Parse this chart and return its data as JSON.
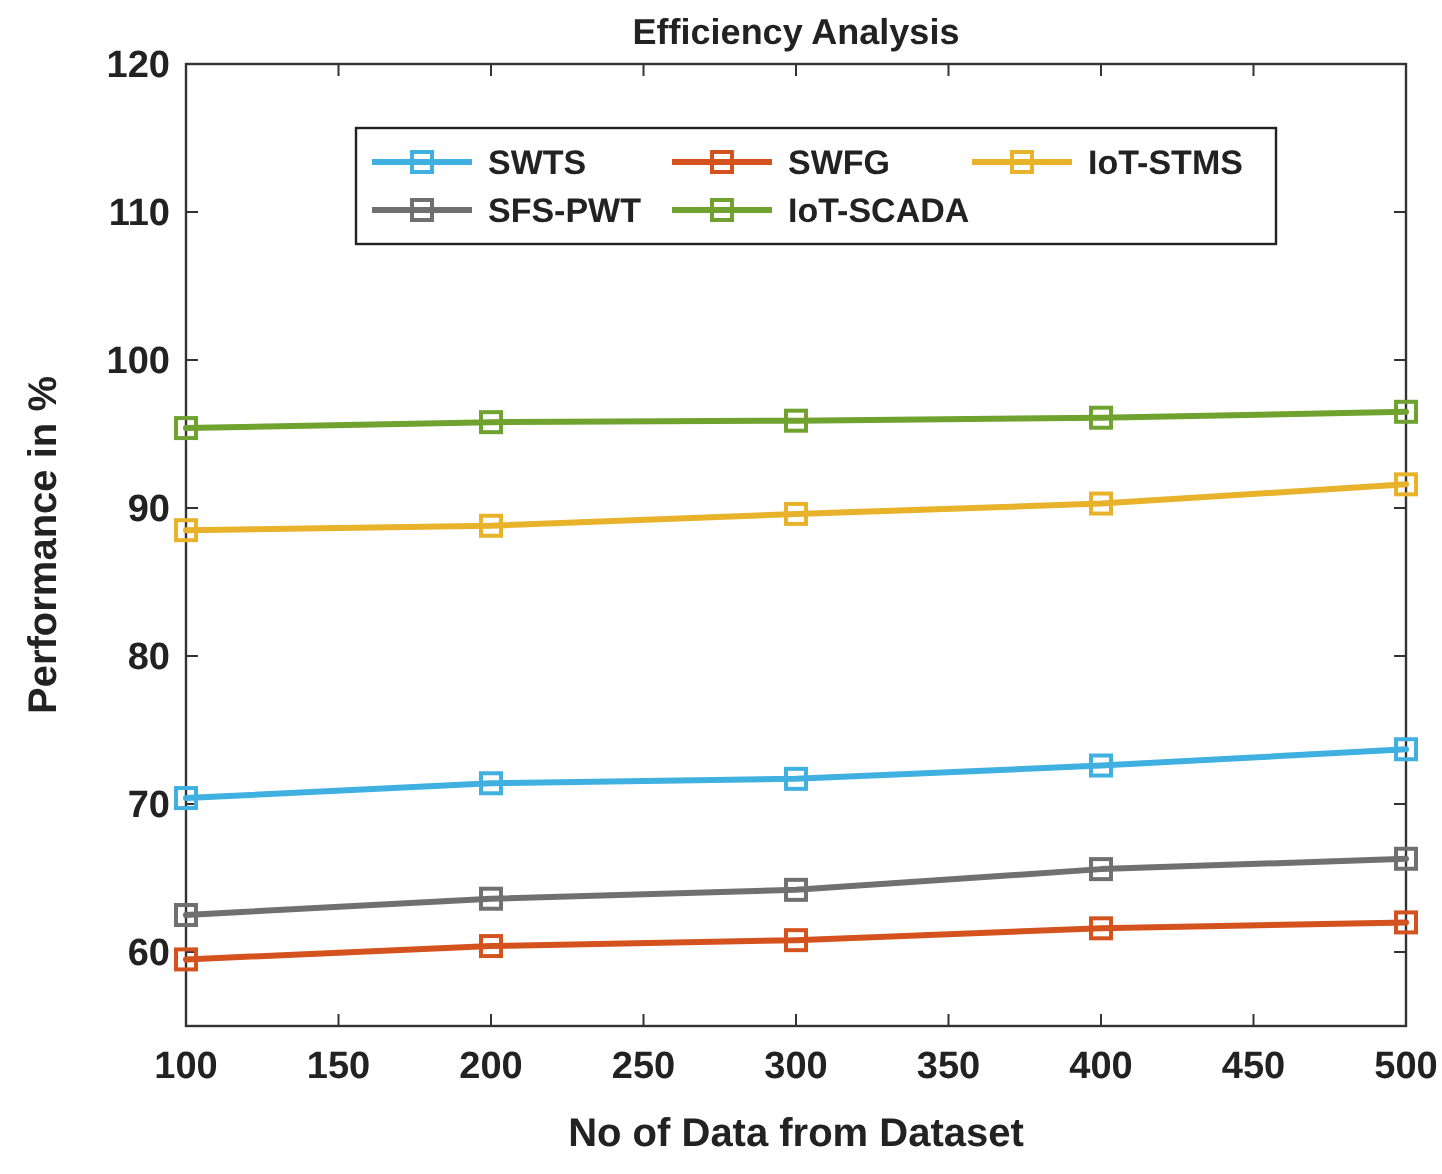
{
  "chart_data": {
    "type": "line",
    "title": "Efficiency Analysis",
    "xlabel": "No of Data from Dataset",
    "ylabel": "Performance in %",
    "x": [
      100,
      200,
      300,
      400,
      500
    ],
    "xlim": [
      100,
      500
    ],
    "xticks": [
      100,
      150,
      200,
      250,
      300,
      350,
      400,
      450,
      500
    ],
    "ylim": [
      55,
      120
    ],
    "yticks": [
      60,
      70,
      80,
      90,
      100,
      110,
      120
    ],
    "grid": false,
    "legend": "top",
    "marker": "square",
    "line_style": "solid",
    "series": [
      {
        "name": "SWTS",
        "color": "#3fb0e0",
        "values": [
          70.4,
          71.4,
          71.7,
          72.6,
          73.7
        ]
      },
      {
        "name": "SWFG",
        "color": "#d4521e",
        "values": [
          59.5,
          60.4,
          60.8,
          61.6,
          62.0
        ]
      },
      {
        "name": "IoT-STMS",
        "color": "#e8b22a",
        "values": [
          88.5,
          88.8,
          89.6,
          90.3,
          91.6
        ]
      },
      {
        "name": "SFS-PWT",
        "color": "#707070",
        "values": [
          62.5,
          63.6,
          64.2,
          65.6,
          66.3
        ]
      },
      {
        "name": "IoT-SCADA",
        "color": "#6fa22e",
        "values": [
          95.4,
          95.8,
          95.9,
          96.1,
          96.5
        ]
      }
    ]
  }
}
